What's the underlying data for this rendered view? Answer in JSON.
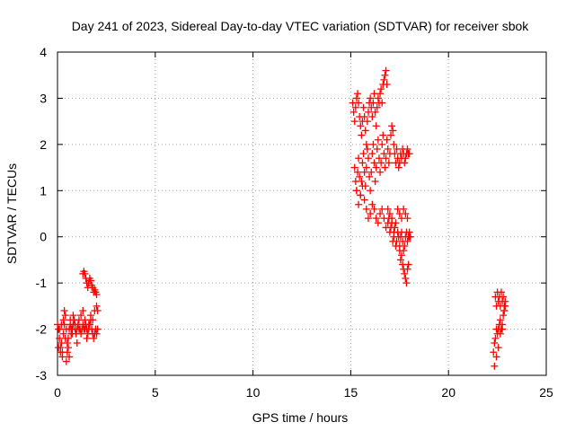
{
  "chart_data": {
    "type": "scatter",
    "title": "Day 241 of 2023, Sidereal Day-to-day VTEC variation (SDTVAR) for receiver sbok",
    "xlabel": "GPS time / hours",
    "ylabel": "SDTVAR / TECUs",
    "xlim": [
      0,
      25
    ],
    "ylim": [
      -3,
      4
    ],
    "xticks": [
      0,
      5,
      10,
      15,
      20,
      25
    ],
    "yticks": [
      -3,
      -2,
      -1,
      0,
      1,
      2,
      3,
      4
    ],
    "grid": true,
    "marker": "+",
    "color": "#ff0000",
    "series": [
      {
        "name": "SDTVAR",
        "x": [
          0.0,
          0.05,
          0.1,
          0.15,
          0.2,
          0.25,
          0.3,
          0.35,
          0.4,
          0.45,
          0.5,
          0.55,
          0.6,
          0.65,
          0.7,
          0.75,
          0.8,
          0.85,
          0.9,
          0.95,
          1.0,
          1.05,
          1.1,
          1.15,
          1.2,
          1.25,
          1.3,
          1.35,
          1.4,
          1.45,
          1.5,
          1.55,
          1.6,
          1.65,
          1.7,
          1.75,
          1.8,
          1.85,
          1.9,
          1.95,
          2.0,
          2.05,
          0.1,
          0.2,
          0.3,
          0.4,
          0.5,
          0.6,
          0.7,
          0.8,
          0.9,
          1.0,
          1.1,
          1.2,
          1.3,
          1.4,
          1.5,
          1.6,
          1.7,
          1.8,
          1.9,
          2.0,
          0.05,
          0.15,
          0.25,
          0.35,
          0.45,
          0.55,
          0.65,
          0.75,
          1.3,
          1.35,
          1.4,
          1.45,
          1.5,
          1.55,
          1.6,
          1.65,
          1.7,
          1.75,
          1.8,
          1.85,
          1.9,
          1.95,
          2.0,
          2.05,
          15.1,
          15.15,
          15.2,
          15.25,
          15.3,
          15.35,
          15.4,
          15.45,
          15.5,
          15.55,
          15.6,
          15.65,
          15.7,
          15.75,
          15.8,
          15.85,
          15.9,
          15.95,
          16.0,
          16.05,
          16.1,
          16.15,
          16.2,
          16.25,
          16.3,
          16.35,
          16.4,
          16.45,
          16.5,
          16.55,
          16.6,
          16.65,
          16.7,
          16.75,
          16.8,
          16.85,
          15.2,
          15.25,
          15.3,
          15.35,
          15.4,
          15.45,
          15.5,
          15.55,
          15.6,
          15.65,
          15.7,
          15.75,
          15.8,
          15.85,
          15.9,
          15.95,
          16.0,
          16.05,
          16.1,
          16.15,
          16.2,
          16.25,
          16.3,
          16.35,
          16.4,
          16.45,
          16.5,
          16.55,
          16.6,
          16.65,
          16.7,
          16.75,
          16.8,
          16.85,
          16.9,
          16.95,
          17.0,
          17.05,
          17.1,
          17.15,
          17.2,
          17.25,
          17.3,
          17.35,
          17.4,
          17.45,
          17.5,
          17.55,
          17.6,
          17.65,
          17.7,
          17.75,
          17.8,
          17.85,
          17.9,
          17.95,
          18.0,
          15.3,
          15.4,
          15.5,
          15.6,
          15.7,
          15.8,
          15.9,
          16.0,
          16.1,
          16.2,
          16.3,
          16.4,
          16.5,
          16.6,
          16.7,
          16.8,
          16.9,
          17.0,
          17.1,
          17.2,
          17.3,
          17.4,
          17.5,
          17.6,
          17.7,
          17.8,
          17.9,
          16.9,
          16.95,
          17.0,
          17.05,
          17.1,
          17.15,
          17.2,
          17.25,
          17.3,
          17.35,
          17.4,
          17.45,
          17.5,
          17.55,
          17.6,
          17.65,
          17.7,
          17.75,
          17.8,
          17.85,
          17.9,
          17.95,
          18.0,
          17.5,
          17.55,
          17.6,
          17.65,
          17.7,
          17.75,
          17.8,
          17.85,
          17.9,
          17.95,
          18.0,
          18.05,
          22.3,
          22.35,
          22.4,
          22.45,
          22.5,
          22.55,
          22.6,
          22.65,
          22.7,
          22.75,
          22.8,
          22.85,
          22.9,
          22.4,
          22.45,
          22.5,
          22.55,
          22.6,
          22.65,
          22.7,
          22.75,
          22.8,
          22.85,
          22.9,
          22.35,
          22.45,
          22.55,
          22.65,
          22.75,
          22.85
        ],
        "y": [
          -1.9,
          -2.0,
          -2.2,
          -2.4,
          -2.3,
          -2.5,
          -2.1,
          -1.6,
          -1.7,
          -2.0,
          -2.3,
          -2.2,
          -2.0,
          -1.9,
          -2.1,
          -2.0,
          -1.9,
          -1.8,
          -2.0,
          -2.1,
          -2.0,
          -1.9,
          -1.8,
          -2.0,
          -2.1,
          -2.0,
          -1.9,
          -2.0,
          -2.0,
          -1.9,
          -2.0,
          -2.1,
          -2.0,
          -1.9,
          -1.8,
          -2.0,
          -2.1,
          -2.2,
          -2.1,
          -2.0,
          -2.1,
          -2.0,
          -2.0,
          -1.9,
          -1.8,
          -2.2,
          -2.5,
          -2.6,
          -2.0,
          -1.7,
          -1.9,
          -2.3,
          -2.0,
          -1.7,
          -1.6,
          -1.8,
          -2.2,
          -1.9,
          -1.7,
          -1.8,
          -1.6,
          -1.5,
          -2.4,
          -2.5,
          -2.6,
          -1.9,
          -2.7,
          -2.4,
          -1.8,
          -2.1,
          -0.8,
          -0.75,
          -0.8,
          -0.9,
          -1.0,
          -1.1,
          -1.0,
          -0.9,
          -0.95,
          -1.05,
          -1.1,
          -1.2,
          -1.15,
          -1.2,
          -1.25,
          -1.6,
          2.9,
          2.7,
          2.5,
          2.8,
          3.0,
          3.1,
          2.9,
          2.6,
          2.4,
          2.2,
          2.5,
          2.8,
          2.6,
          2.3,
          2.0,
          2.5,
          2.7,
          2.9,
          3.0,
          2.8,
          2.6,
          2.9,
          3.1,
          2.7,
          2.4,
          2.8,
          3.0,
          2.9,
          3.1,
          3.2,
          2.9,
          3.3,
          3.4,
          3.5,
          3.6,
          3.3,
          1.5,
          1.2,
          1.0,
          1.4,
          1.7,
          1.3,
          0.9,
          1.2,
          1.6,
          1.8,
          1.4,
          1.1,
          1.5,
          1.9,
          1.7,
          1.3,
          1.0,
          1.4,
          1.8,
          2.0,
          1.6,
          1.2,
          1.5,
          1.9,
          2.1,
          1.7,
          1.4,
          1.6,
          2.0,
          2.2,
          1.8,
          1.5,
          1.7,
          2.1,
          1.9,
          1.6,
          1.8,
          2.2,
          2.4,
          2.3,
          2.0,
          1.8,
          1.6,
          1.9,
          1.7,
          1.5,
          1.6,
          1.8,
          1.7,
          1.9,
          1.8,
          1.6,
          1.7,
          1.8,
          1.9,
          1.8,
          1.8,
          1.0,
          0.7,
          0.9,
          1.1,
          0.8,
          0.6,
          0.4,
          0.5,
          0.7,
          0.6,
          0.4,
          0.3,
          0.5,
          0.6,
          0.4,
          0.2,
          0.3,
          0.5,
          0.4,
          0.1,
          0.3,
          0.6,
          0.5,
          0.4,
          0.6,
          0.5,
          0.4,
          0.6,
          0.4,
          0.1,
          0.2,
          0.3,
          -0.1,
          0.0,
          0.2,
          -0.2,
          -0.1,
          0.1,
          0.0,
          -0.3,
          -0.5,
          -0.4,
          -0.6,
          -0.7,
          -0.8,
          -0.9,
          -1.0,
          -0.7,
          -0.6,
          0.0,
          -0.2,
          0.0,
          0.1,
          -0.1,
          -0.3,
          -0.2,
          0.0,
          0.1,
          -0.1,
          0.0,
          0.1,
          0.0,
          -2.5,
          -2.3,
          -2.2,
          -2.0,
          -2.1,
          -2.0,
          -1.9,
          -1.8,
          -2.0,
          -1.9,
          -1.7,
          -1.6,
          -1.5,
          -1.3,
          -1.5,
          -1.2,
          -1.4,
          -1.3,
          -1.5,
          -1.2,
          -1.4,
          -1.3,
          -1.5,
          -1.4,
          -2.8,
          -2.6,
          -2.4,
          -2.1,
          -2.0,
          -1.6
        ]
      }
    ]
  }
}
